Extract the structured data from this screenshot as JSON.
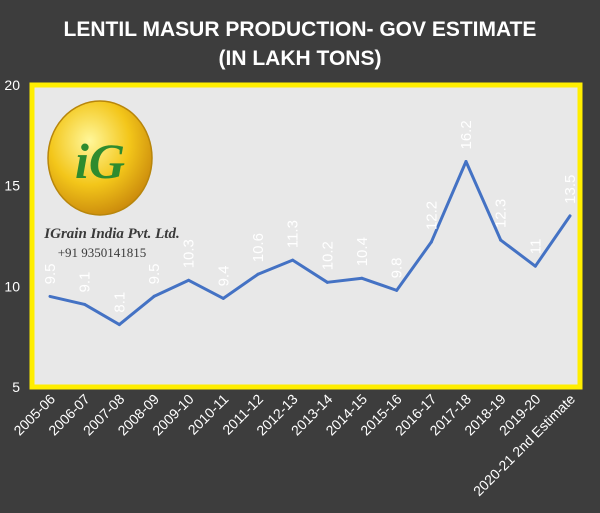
{
  "chart_data": {
    "type": "line",
    "title_line1": "LENTIL MASUR PRODUCTION- GOV ESTIMATE",
    "title_line2": "(IN LAKH TONS)",
    "categories": [
      "2005-06",
      "2006-07",
      "2007-08",
      "2008-09",
      "2009-10",
      "2010-11",
      "2011-12",
      "2012-13",
      "2013-14",
      "2014-15",
      "2015-16",
      "2016-17",
      "2017-18",
      "2018-19",
      "2019-20",
      "2020-21 2nd Estimate"
    ],
    "values": [
      9.5,
      9.1,
      8.1,
      9.5,
      10.3,
      9.4,
      10.6,
      11.3,
      10.2,
      10.4,
      9.8,
      12.2,
      16.2,
      12.3,
      11,
      13.5
    ],
    "labels": [
      "9.5",
      "9.1",
      "8.1",
      "9.5",
      "10.3",
      "9.4",
      "10.6",
      "11.3",
      "10.2",
      "10.4",
      "9.8",
      "12.2",
      "16.2",
      "12.3",
      "11",
      "13.5"
    ],
    "yticks": [
      5,
      10,
      15,
      20
    ],
    "ylim": [
      5,
      20
    ],
    "grid": false,
    "legend": "none",
    "colors": {
      "background": "#3d3d3d",
      "plot_area": "#e8e8e8",
      "plot_border": "#ffee00",
      "line": "#4472c4",
      "text": "#ffffff"
    }
  },
  "watermark": {
    "logo_text": "iG",
    "company": "IGrain India Pvt. Ltd.",
    "phone": "+91 9350141815"
  }
}
